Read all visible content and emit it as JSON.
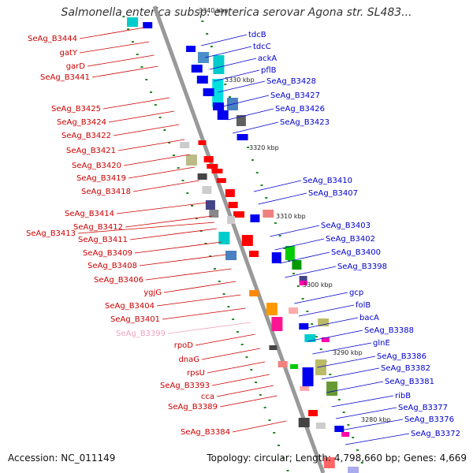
{
  "title": "Salmonella enterica subsp. enterica serovar Agona str. SL483...",
  "footer": {
    "accession": "Accession: NC_011149",
    "summary": "Topology: circular; Length: 4,798,660 bp; Genes: 4,669"
  },
  "colors": {
    "forward_label": "#0000cc",
    "reverse_label": "#cc0000",
    "highlight_label": "#f0a0c0",
    "backbone": "#999999",
    "ticks": "#228822"
  },
  "kbp_markers": [
    "3340 kbp",
    "3330 kbp",
    "3320 kbp",
    "3310 kbp",
    "3300 kbp",
    "3290 kbp",
    "3280 kbp"
  ],
  "forward_labels": [
    "tdcB",
    "tdcC",
    "ackA",
    "pflB",
    "SeAg_B3428",
    "SeAg_B3427",
    "SeAg_B3426",
    "SeAg_B3423",
    "SeAg_B3410",
    "SeAg_B3407",
    "SeAg_B3403",
    "SeAg_B3402",
    "SeAg_B3400",
    "SeAg_B3398",
    "gcp",
    "folB",
    "bacA",
    "SeAg_B3388",
    "glnE",
    "SeAg_B3386",
    "SeAg_B3382",
    "SeAg_B3381",
    "ribB",
    "SeAg_B3377",
    "SeAg_B3376",
    "SeAg_B3372"
  ],
  "reverse_labels": [
    "SeAg_B3444",
    "gatY",
    "garD",
    "SeAg_B3441",
    "SeAg_B3425",
    "SeAg_B3424",
    "SeAg_B3422",
    "SeAg_B3421",
    "SeAg_B3420",
    "SeAg_B3419",
    "SeAg_B3418",
    "SeAg_B3414",
    "SeAg_B3412",
    "SeAg_B3413",
    "SeAg_B3411",
    "SeAg_B3409",
    "SeAg_B3408",
    "SeAg_B3406",
    "ygjG",
    "SeAg_B3404",
    "SeAg_B3401",
    "SeAg_B3399",
    "rpoD",
    "dnaG",
    "rpsU",
    "SeAg_B3393",
    "cca",
    "SeAg_B3389",
    "SeAg_B3384"
  ]
}
